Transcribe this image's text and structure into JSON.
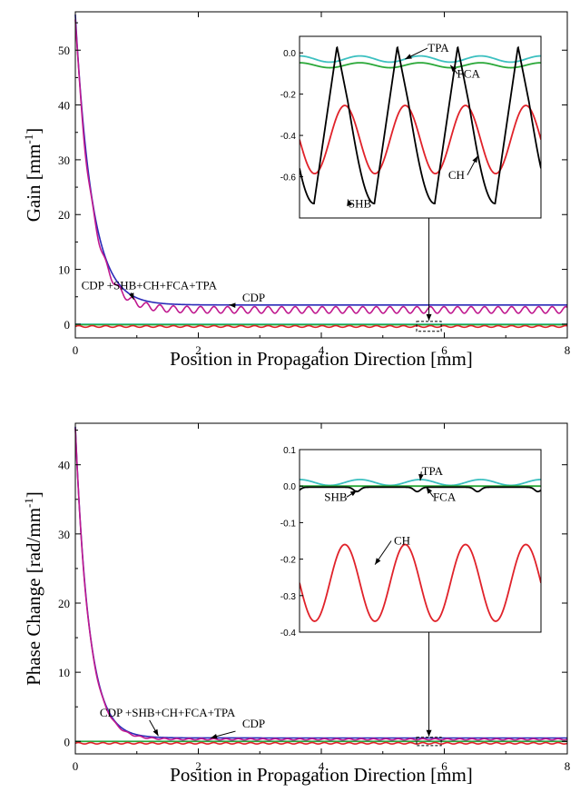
{
  "colors": {
    "blue": "#2a2ab8",
    "magenta": "#c0198f",
    "black": "#000000",
    "red": "#e0222a",
    "cyan": "#3cc0c0",
    "green": "#2aa838"
  },
  "chart_data": [
    {
      "type": "line",
      "title": "",
      "xlabel": "Position in Propagation Direction [mm]",
      "ylabel": "Gain  [mm",
      "ylabel_sup": "-1",
      "ylabel_close": "]",
      "xlim": [
        0,
        8
      ],
      "ylim": [
        -2.5,
        57
      ],
      "xticks": [
        "0",
        "2",
        "4",
        "6",
        "8"
      ],
      "yticks": [
        "0",
        "10",
        "20",
        "30",
        "40",
        "50"
      ],
      "annotations": [
        {
          "text": "CDP +SHB+CH+FCA+TPA",
          "x": 1.2,
          "y": 6.4,
          "target_x": 0.95,
          "target_y": 4.5
        },
        {
          "text": "CDP",
          "x": 2.9,
          "y": 4.1,
          "target_x": 2.5,
          "target_y": 3.5
        }
      ],
      "series": [
        {
          "key": "cdp",
          "color": "blue",
          "model": {
            "type": "decay",
            "a": 53,
            "tau": 0.27,
            "b": 3.5,
            "amp": 0,
            "period": 1
          }
        },
        {
          "key": "full",
          "color": "magenta",
          "model": {
            "type": "decay",
            "a": 53,
            "tau": 0.27,
            "b": 2.6,
            "amp": 0.6,
            "period": 0.22
          }
        },
        {
          "key": "tpa",
          "color": "cyan",
          "model": {
            "type": "const",
            "b": 0
          }
        },
        {
          "key": "fca",
          "color": "green",
          "model": {
            "type": "const",
            "b": -0.1
          }
        },
        {
          "key": "ch",
          "color": "red",
          "model": {
            "type": "decay",
            "a": 0,
            "tau": 1,
            "b": -0.42,
            "amp": 0.15,
            "period": 0.22
          }
        }
      ],
      "inset": {
        "xlim": [
          5.55,
          5.95
        ],
        "ylim": [
          -0.8,
          0.08
        ],
        "yticks": [
          "0.0",
          "-0.2",
          "-0.4",
          "-0.6"
        ],
        "zoom_box": {
          "x": [
            5.55,
            5.95
          ],
          "y": [
            -1.3,
            0.5
          ]
        },
        "labels": [
          {
            "text": "TPA",
            "x": 5.78,
            "y": 0.005,
            "target_x": 5.725,
            "target_y": -0.03
          },
          {
            "text": "FCA",
            "x": 5.83,
            "y": -0.12,
            "target_x": 5.8,
            "target_y": -0.06
          },
          {
            "text": "CH",
            "x": 5.81,
            "y": -0.61,
            "target_x": 5.845,
            "target_y": -0.5
          },
          {
            "text": "SHB",
            "x": 5.65,
            "y": -0.75,
            "target_x": 5.63,
            "target_y": -0.71
          }
        ],
        "series": [
          {
            "key": "tpa",
            "color": "cyan",
            "model": {
              "type": "wave",
              "mid": -0.03,
              "amp": 0.015,
              "period": 0.1,
              "phase": 0.05
            }
          },
          {
            "key": "fca",
            "color": "green",
            "model": {
              "type": "wave",
              "mid": -0.06,
              "amp": 0.012,
              "period": 0.1,
              "phase": 0.05
            }
          },
          {
            "key": "ch",
            "color": "red",
            "model": {
              "type": "wave",
              "mid": -0.42,
              "amp": 0.165,
              "period": 0.1,
              "phase": 0.025
            }
          },
          {
            "key": "shb",
            "color": "black",
            "model": {
              "type": "saw",
              "top": 0.03,
              "bottom": -0.73,
              "period": 0.1,
              "phase": 0.012
            }
          }
        ]
      }
    },
    {
      "type": "line",
      "title": "",
      "xlabel": "Position in Propagation Direction [mm]",
      "ylabel": "Phase Change  [rad/mm",
      "ylabel_sup": "-1",
      "ylabel_close": "]",
      "xlim": [
        0,
        8
      ],
      "ylim": [
        -1.8,
        46
      ],
      "xticks": [
        "0",
        "2",
        "4",
        "6",
        "8"
      ],
      "yticks": [
        "0",
        "10",
        "20",
        "30",
        "40"
      ],
      "annotations": [
        {
          "text": "CDP +SHB+CH+FCA+TPA",
          "x": 1.5,
          "y": 3.6,
          "target_x": 1.35,
          "target_y": 0.8
        },
        {
          "text": "CDP",
          "x": 2.9,
          "y": 2.0,
          "target_x": 2.2,
          "target_y": 0.5
        }
      ],
      "series": [
        {
          "key": "cdp",
          "color": "blue",
          "model": {
            "type": "decay",
            "a": 45,
            "tau": 0.22,
            "b": 0.5,
            "amp": 0,
            "period": 1
          }
        },
        {
          "key": "full",
          "color": "magenta",
          "model": {
            "type": "decay",
            "a": 45,
            "tau": 0.22,
            "b": 0.3,
            "amp": 0.1,
            "period": 0.2
          }
        },
        {
          "key": "tpa",
          "color": "cyan",
          "model": {
            "type": "const",
            "b": 0.02
          }
        },
        {
          "key": "fca",
          "color": "green",
          "model": {
            "type": "const",
            "b": 0
          }
        },
        {
          "key": "ch",
          "color": "red",
          "model": {
            "type": "decay",
            "a": 0,
            "tau": 1,
            "b": -0.27,
            "amp": 0.1,
            "period": 0.2
          }
        }
      ],
      "inset": {
        "xlim": [
          5.55,
          5.95
        ],
        "ylim": [
          -0.4,
          0.1
        ],
        "yticks": [
          "0.1",
          "0.0",
          "-0.1",
          "-0.2",
          "-0.3",
          "-0.4"
        ],
        "zoom_box": {
          "x": [
            5.55,
            5.95
          ],
          "y": [
            -0.6,
            0.6
          ]
        },
        "labels": [
          {
            "text": "TPA",
            "x": 5.77,
            "y": 0.03,
            "target_x": 5.75,
            "target_y": 0.015
          },
          {
            "text": "SHB",
            "x": 5.61,
            "y": -0.04,
            "target_x": 5.645,
            "target_y": -0.012
          },
          {
            "text": "FCA",
            "x": 5.79,
            "y": -0.04,
            "target_x": 5.76,
            "target_y": -0.003
          },
          {
            "text": "CH",
            "x": 5.72,
            "y": -0.16,
            "target_x": 5.675,
            "target_y": -0.215
          }
        ],
        "series": [
          {
            "key": "tpa",
            "color": "cyan",
            "model": {
              "type": "wave",
              "mid": 0.01,
              "amp": 0.008,
              "period": 0.1,
              "phase": 0.05
            }
          },
          {
            "key": "fca",
            "color": "green",
            "model": {
              "type": "const",
              "b": 0
            }
          },
          {
            "key": "shb",
            "color": "black",
            "model": {
              "type": "dip",
              "mid": -0.003,
              "depth": 0.012,
              "period": 0.1,
              "phase": 0.045
            }
          },
          {
            "key": "ch",
            "color": "red",
            "model": {
              "type": "wave",
              "mid": -0.265,
              "amp": 0.105,
              "period": 0.1,
              "phase": 0.025
            }
          }
        ]
      }
    }
  ]
}
